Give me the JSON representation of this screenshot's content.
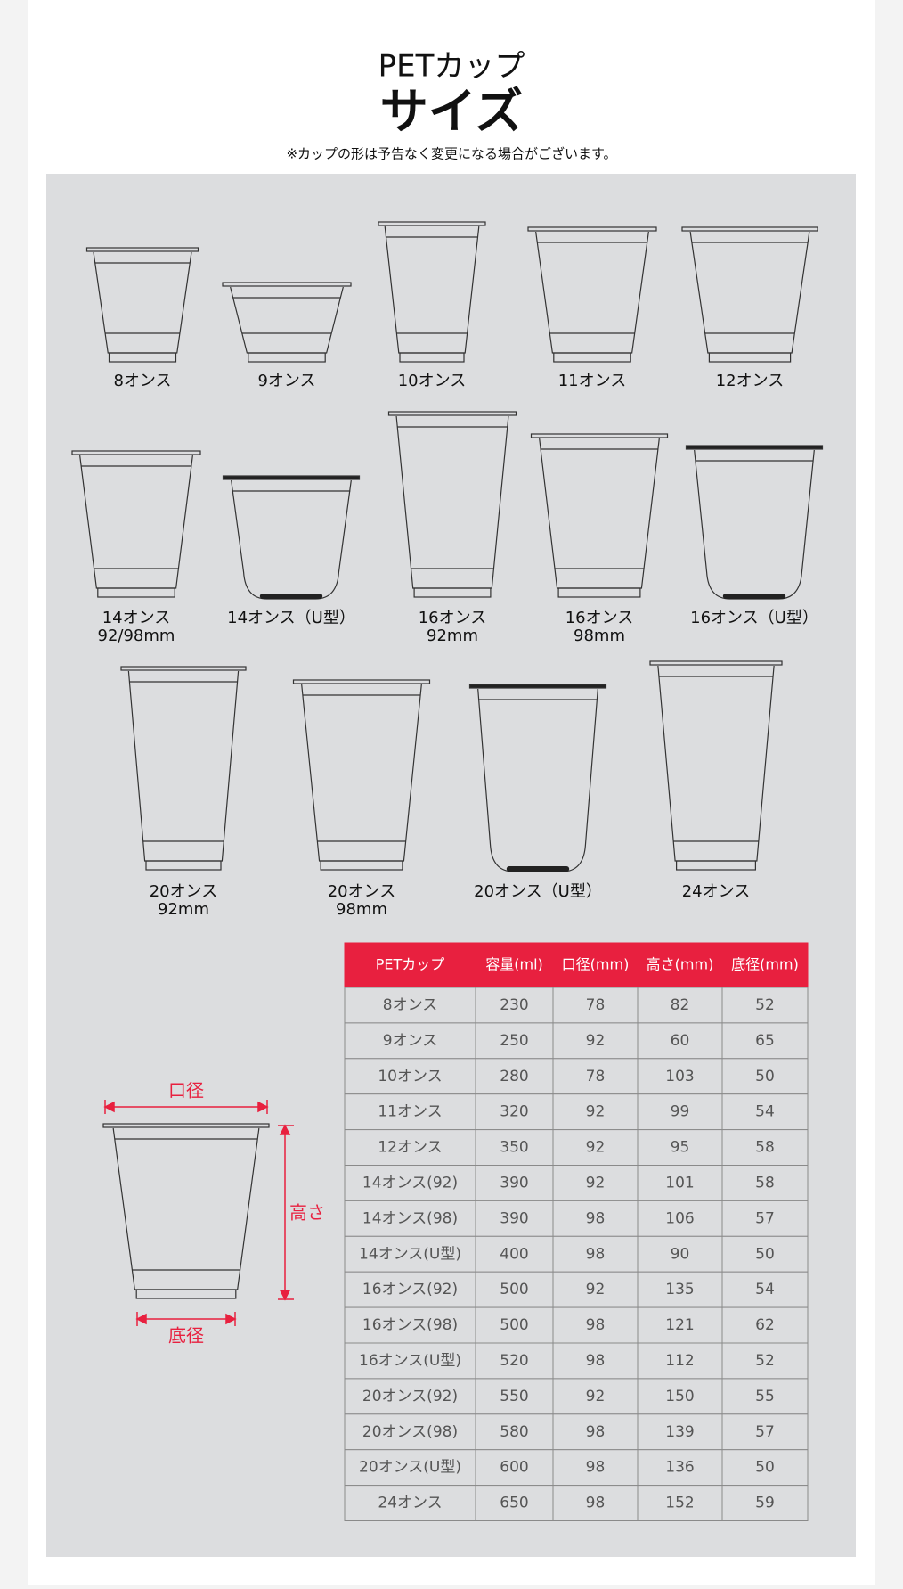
{
  "header": {
    "title": "PETカップ",
    "subtitle": "サイズ",
    "note": "※カップの形は予告なく変更になる場合がございます。"
  },
  "cups": [
    {
      "lines": [
        "8オンス"
      ]
    },
    {
      "lines": [
        "9オンス"
      ]
    },
    {
      "lines": [
        "10オンス"
      ]
    },
    {
      "lines": [
        "11オンス"
      ]
    },
    {
      "lines": [
        "12オンス"
      ]
    },
    {
      "lines": [
        "14オンス",
        "92/98mm"
      ]
    },
    {
      "lines": [
        "14オンス（U型）"
      ]
    },
    {
      "lines": [
        "16オンス",
        "92mm"
      ]
    },
    {
      "lines": [
        "16オンス",
        "98mm"
      ]
    },
    {
      "lines": [
        "16オンス（U型）"
      ]
    },
    {
      "lines": [
        "20オンス",
        "92mm"
      ]
    },
    {
      "lines": [
        "20オンス",
        "98mm"
      ]
    },
    {
      "lines": [
        "20オンス（U型）"
      ]
    },
    {
      "lines": [
        "24オンス"
      ]
    }
  ],
  "diagram": {
    "mouth": "口径",
    "height": "高さ",
    "base": "底径"
  },
  "table": {
    "headers": [
      "PETカップ",
      "容量(ml)",
      "口径(mm)",
      "高さ(mm)",
      "底径(mm)"
    ],
    "rows": [
      [
        "8オンス",
        230,
        78,
        82,
        52
      ],
      [
        "9オンス",
        250,
        92,
        60,
        65
      ],
      [
        "10オンス",
        280,
        78,
        103,
        50
      ],
      [
        "11オンス",
        320,
        92,
        99,
        54
      ],
      [
        "12オンス",
        350,
        92,
        95,
        58
      ],
      [
        "14オンス(92)",
        390,
        92,
        101,
        58
      ],
      [
        "14オンス(98)",
        390,
        98,
        106,
        57
      ],
      [
        "14オンス(U型)",
        400,
        98,
        90,
        50
      ],
      [
        "16オンス(92)",
        500,
        92,
        135,
        54
      ],
      [
        "16オンス(98)",
        500,
        98,
        121,
        62
      ],
      [
        "16オンス(U型)",
        520,
        98,
        112,
        52
      ],
      [
        "20オンス(92)",
        550,
        92,
        150,
        55
      ],
      [
        "20オンス(98)",
        580,
        98,
        139,
        57
      ],
      [
        "20オンス(U型)",
        600,
        98,
        136,
        50
      ],
      [
        "24オンス",
        650,
        98,
        152,
        59
      ]
    ]
  }
}
